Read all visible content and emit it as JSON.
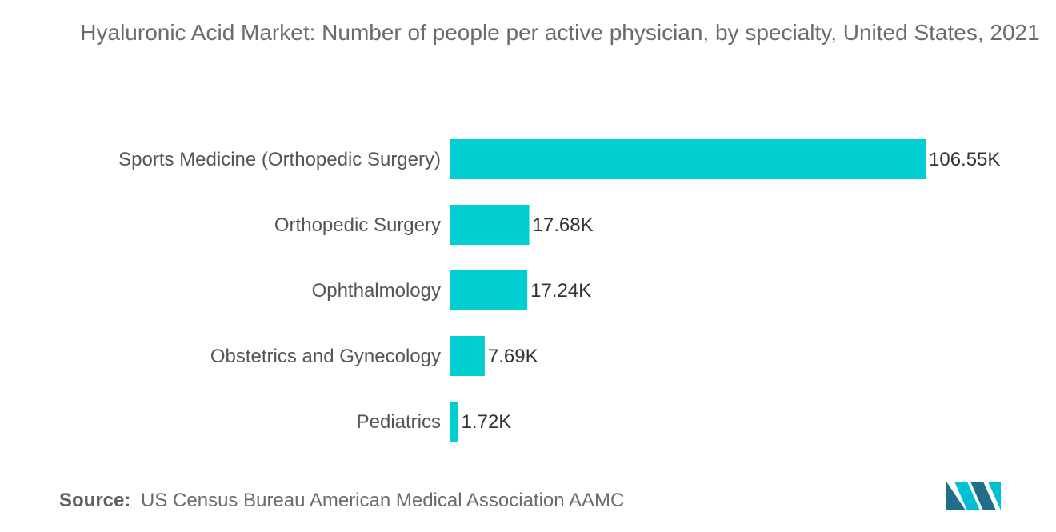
{
  "chart_data": {
    "type": "bar",
    "orientation": "horizontal",
    "title": "Hyaluronic Acid Market: Number of people per active physician, by specialty, United States, 2021",
    "categories": [
      "Sports Medicine (Orthopedic Surgery)",
      "Orthopedic Surgery",
      "Ophthalmology",
      "Obstetrics and Gynecology",
      "Pediatrics"
    ],
    "values": [
      106.55,
      17.68,
      17.24,
      7.69,
      1.72
    ],
    "data_labels": [
      "106.55K",
      "17.68K",
      "17.24K",
      "7.69K",
      "1.72K"
    ],
    "bar_color": "#00ced1",
    "grid": false,
    "legend": "none"
  },
  "source": {
    "label": "Source:",
    "text": "US Census Bureau American Medical Association AAMC"
  },
  "logo": {
    "icon": "mordor-intelligence-logo",
    "colors": [
      "#1f6f8b",
      "#00c1d4"
    ]
  }
}
